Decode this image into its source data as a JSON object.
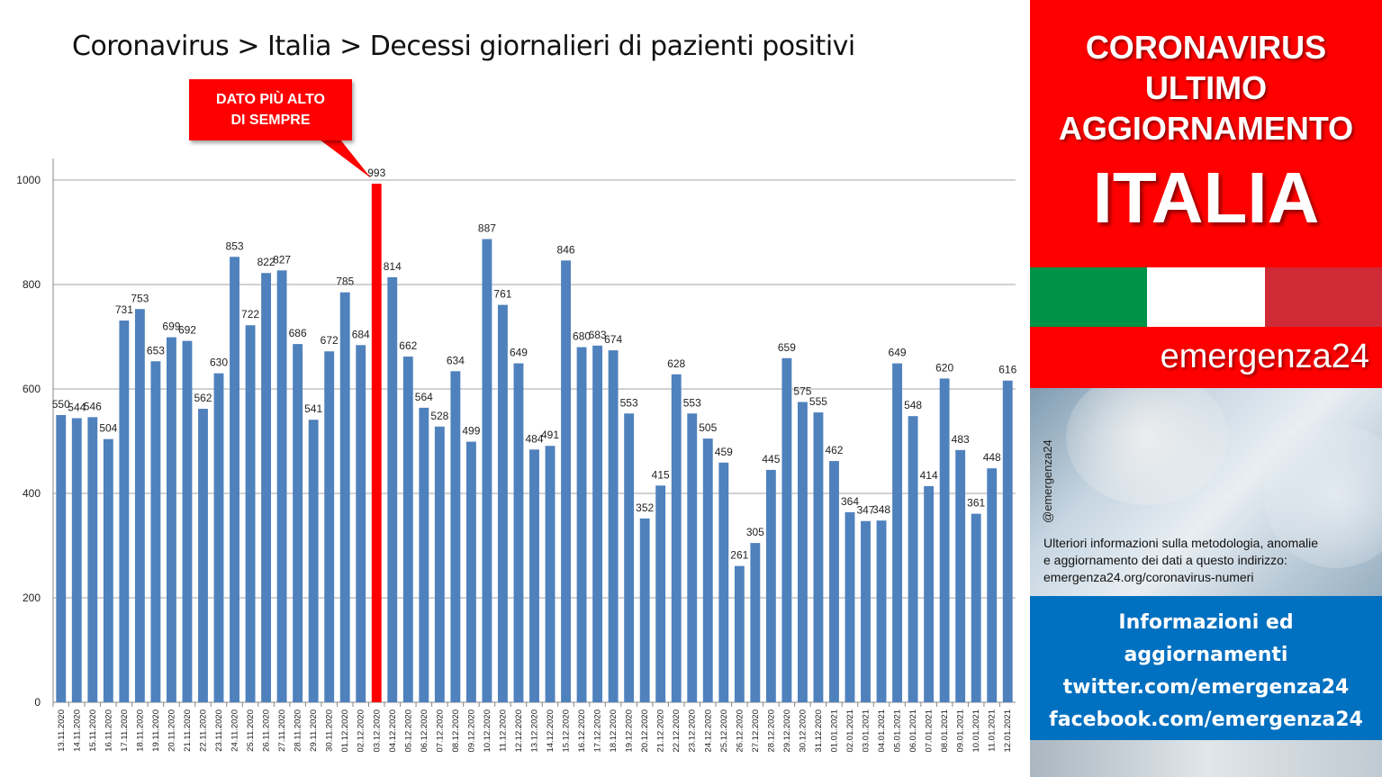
{
  "title": "Coronavirus > Italia > Decessi giornalieri di pazienti positivi",
  "callout": {
    "line1": "DATO PIÙ ALTO",
    "line2": "DI SEMPRE"
  },
  "colors": {
    "bar": "#4f81bd",
    "highlight": "#ff0000",
    "sidebar_red": "#ff0000",
    "sidebar_blue": "#0070c0",
    "flag_green": "#009246",
    "flag_white": "#ffffff",
    "flag_red": "#ce2b37"
  },
  "chart_data": {
    "type": "bar",
    "title": "Coronavirus > Italia > Decessi giornalieri di pazienti positivi",
    "xlabel": "",
    "ylabel": "",
    "ylim": [
      0,
      1000
    ],
    "yticks": [
      0,
      200,
      400,
      600,
      800,
      1000
    ],
    "grid": true,
    "highlight_category": "03.12.2020",
    "categories": [
      "13.11.2020",
      "14.11.2020",
      "15.11.2020",
      "16.11.2020",
      "17.11.2020",
      "18.11.2020",
      "19.11.2020",
      "20.11.2020",
      "21.11.2020",
      "22.11.2020",
      "23.11.2020",
      "24.11.2020",
      "25.11.2020",
      "26.11.2020",
      "27.11.2020",
      "28.11.2020",
      "29.11.2020",
      "30.11.2020",
      "01.12.2020",
      "02.12.2020",
      "03.12.2020",
      "04.12.2020",
      "05.12.2020",
      "06.12.2020",
      "07.12.2020",
      "08.12.2020",
      "09.12.2020",
      "10.12.2020",
      "11.12.2020",
      "12.12.2020",
      "13.12.2020",
      "14.12.2020",
      "15.12.2020",
      "16.12.2020",
      "17.12.2020",
      "18.12.2020",
      "19.12.2020",
      "20.12.2020",
      "21.12.2020",
      "22.12.2020",
      "23.12.2020",
      "24.12.2020",
      "25.12.2020",
      "26.12.2020",
      "27.12.2020",
      "28.12.2020",
      "29.12.2020",
      "30.12.2020",
      "31.12.2020",
      "01.01.2021",
      "02.01.2021",
      "03.01.2021",
      "04.01.2021",
      "05.01.2021",
      "06.01.2021",
      "07.01.2021",
      "08.01.2021",
      "09.01.2021",
      "10.01.2021",
      "11.01.2021",
      "12.01.2021"
    ],
    "values": [
      550,
      544,
      546,
      504,
      731,
      753,
      653,
      699,
      692,
      562,
      630,
      853,
      722,
      822,
      827,
      686,
      541,
      672,
      785,
      684,
      993,
      814,
      662,
      564,
      528,
      634,
      499,
      887,
      761,
      649,
      484,
      491,
      846,
      680,
      683,
      674,
      553,
      352,
      415,
      628,
      553,
      505,
      459,
      261,
      305,
      445,
      659,
      575,
      555,
      462,
      364,
      347,
      348,
      649,
      548,
      414,
      620,
      483,
      361,
      448,
      616
    ]
  },
  "sidebar": {
    "head_line1": "CORONAVIRUS",
    "head_line2": "ULTIMO",
    "head_line3": "AGGIORNAMENTO",
    "country": "ITALIA",
    "brand": "emergenza24",
    "handle": "@emergenza24",
    "note_line1": "Ulteriori informazioni sulla metodologia, anomalie",
    "note_line2": "e aggiornamento dei dati a questo indirizzo:",
    "note_line3": "emergenza24.org/coronavirus-numeri",
    "info_line1": "Informazioni ed",
    "info_line2": "aggiornamenti",
    "info_line3": "twitter.com/emergenza24",
    "info_line4": "facebook.com/emergenza24"
  }
}
